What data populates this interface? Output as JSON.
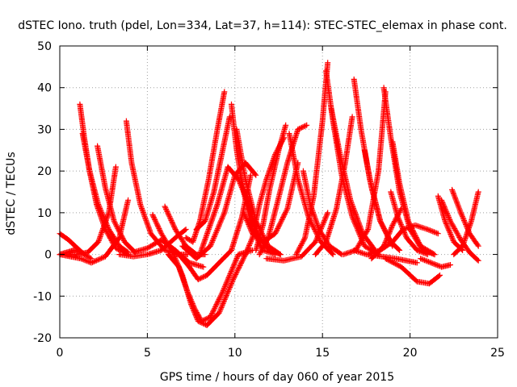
{
  "chart_data": {
    "type": "scatter",
    "title": "dSTEC Iono. truth (pdel, Lon=334, Lat=37, h=114): STEC-STEC_elemax in phase cont.",
    "xlabel": "GPS time / hours of day 060 of year 2015",
    "ylabel": "dSTEC  / TECUs",
    "xlim": [
      0,
      25
    ],
    "ylim": [
      -20,
      50
    ],
    "xticks": [
      0,
      5,
      10,
      15,
      20,
      25
    ],
    "yticks": [
      -20,
      -10,
      0,
      10,
      20,
      30,
      40,
      50
    ],
    "xtick_labels": [
      "0",
      "5",
      "10",
      "15",
      "20",
      "25"
    ],
    "ytick_labels": [
      "-20",
      "-10",
      "0",
      "10",
      "20",
      "30",
      "40",
      "50"
    ],
    "grid": true,
    "marker": "+",
    "colors": {
      "series": "#ff0000",
      "grid": "#a0a0a0",
      "axes": "#000000"
    },
    "series": [
      {
        "x": [
          0.0,
          0.5,
          1.0,
          1.4,
          1.8
        ],
        "y": [
          5,
          3.5,
          1.5,
          0,
          -1
        ]
      },
      {
        "x": [
          0.0,
          0.6,
          1.2,
          1.8,
          2.6,
          3.4,
          3.9
        ],
        "y": [
          0,
          -0.5,
          -1,
          -2,
          -0.5,
          4,
          13
        ]
      },
      {
        "x": [
          0.4,
          1.0,
          1.6,
          2.2,
          2.8,
          3.2
        ],
        "y": [
          0,
          0,
          0.5,
          3,
          10,
          21
        ]
      },
      {
        "x": [
          1.15,
          1.4,
          1.7,
          2.1,
          2.6,
          3.2,
          3.9
        ],
        "y": [
          36,
          28,
          20,
          12,
          6,
          1.5,
          0
        ]
      },
      {
        "x": [
          1.3,
          1.7,
          2.2,
          2.8,
          3.4,
          3.9
        ],
        "y": [
          29,
          20,
          12,
          6,
          2,
          0.5
        ]
      },
      {
        "x": [
          2.15,
          2.6,
          3.1,
          3.7,
          4.3
        ],
        "y": [
          26,
          16,
          8,
          3,
          0.5
        ]
      },
      {
        "x": [
          3.8,
          4.1,
          4.6,
          5.2,
          6.0,
          6.8
        ],
        "y": [
          32,
          22,
          12,
          5,
          1,
          0
        ]
      },
      {
        "x": [
          3.4,
          4.2,
          5.0,
          5.8,
          6.6,
          7.2
        ],
        "y": [
          0,
          -0.5,
          0,
          1,
          4,
          6
        ]
      },
      {
        "x": [
          5.3,
          5.8,
          6.3,
          6.8,
          7.3
        ],
        "y": [
          9.5,
          5,
          1.5,
          0,
          0
        ]
      },
      {
        "x": [
          6.0,
          6.6,
          7.2,
          7.8,
          8.3
        ],
        "y": [
          11.5,
          6,
          2,
          0,
          0
        ]
      },
      {
        "x": [
          4.2,
          5.0,
          5.8,
          6.6,
          7.4,
          8.2
        ],
        "y": [
          0.5,
          1.5,
          3.5,
          1,
          -2,
          -3
        ]
      },
      {
        "x": [
          6.2,
          6.8,
          7.3,
          7.7,
          8.1,
          8.6,
          9.3,
          10.2,
          11.0
        ],
        "y": [
          0,
          -3,
          -9,
          -13,
          -16,
          -15,
          -9,
          0,
          1
        ]
      },
      {
        "x": [
          6.4,
          7.0,
          7.5,
          7.9,
          8.4,
          9.1,
          9.9,
          10.6
        ],
        "y": [
          1,
          -5,
          -12,
          -16,
          -17,
          -14,
          -6,
          0
        ]
      },
      {
        "x": [
          6.8,
          7.4,
          7.9,
          8.4,
          9.1,
          9.8,
          10.4,
          10.9
        ],
        "y": [
          0,
          -3,
          -6,
          -5,
          -2,
          1,
          9,
          19
        ]
      },
      {
        "x": [
          7.0,
          7.8,
          8.6,
          9.4,
          10.0,
          10.6,
          11.2
        ],
        "y": [
          2,
          -1,
          2,
          10,
          19,
          22,
          19
        ]
      },
      {
        "x": [
          7.2,
          7.6,
          8.0,
          8.5,
          9.0,
          9.4
        ],
        "y": [
          4,
          3,
          8,
          18,
          30,
          39
        ]
      },
      {
        "x": [
          7.8,
          8.3,
          8.8,
          9.3,
          9.7
        ],
        "y": [
          6,
          8,
          15,
          25,
          33
        ]
      },
      {
        "x": [
          8.0,
          8.5,
          9.0,
          9.6,
          10.2,
          11.0
        ],
        "y": [
          0,
          6,
          12,
          21,
          18,
          10
        ]
      },
      {
        "x": [
          9.8,
          10.1,
          10.5,
          11.0,
          11.6,
          12.3
        ],
        "y": [
          36,
          25,
          15,
          6,
          1,
          0
        ]
      },
      {
        "x": [
          10.1,
          10.6,
          11.2,
          11.9,
          12.6
        ],
        "y": [
          30,
          18,
          8,
          2,
          0
        ]
      },
      {
        "x": [
          10.3,
          10.8,
          11.4,
          12.0,
          12.6
        ],
        "y": [
          19,
          11,
          4,
          1,
          0
        ]
      },
      {
        "x": [
          10.6,
          11.0,
          11.4,
          11.8,
          12.3,
          12.8
        ],
        "y": [
          0,
          4,
          12,
          18,
          24,
          28
        ]
      },
      {
        "x": [
          11.2,
          11.6,
          12.0,
          12.5,
          12.9
        ],
        "y": [
          1,
          7,
          16,
          25,
          31
        ]
      },
      {
        "x": [
          11.4,
          11.9,
          12.4,
          13.0,
          13.6,
          14.1
        ],
        "y": [
          0,
          4,
          12,
          22,
          30,
          31
        ]
      },
      {
        "x": [
          10.5,
          11.0,
          11.6,
          12.3,
          13.0,
          13.6
        ],
        "y": [
          10,
          5,
          3,
          5,
          11,
          22
        ]
      },
      {
        "x": [
          13.1,
          13.6,
          14.2,
          14.9,
          15.6
        ],
        "y": [
          29,
          18,
          9,
          3,
          0
        ]
      },
      {
        "x": [
          13.9,
          14.3,
          14.8,
          15.4,
          16.1
        ],
        "y": [
          20,
          12,
          6,
          2,
          0
        ]
      },
      {
        "x": [
          11.8,
          12.8,
          13.8,
          14.6,
          15.3
        ],
        "y": [
          -1,
          -1.5,
          -0.5,
          3,
          10
        ]
      },
      {
        "x": [
          13.5,
          14.0,
          14.5,
          15.0,
          15.3
        ],
        "y": [
          0,
          4,
          14,
          32,
          46
        ]
      },
      {
        "x": [
          15.2,
          15.6,
          16.1,
          16.7,
          17.4,
          18.2
        ],
        "y": [
          44,
          32,
          19,
          9,
          2,
          0
        ]
      },
      {
        "x": [
          15.5,
          16.0,
          16.6,
          17.3,
          18.0
        ],
        "y": [
          35,
          24,
          13,
          5,
          1
        ]
      },
      {
        "x": [
          16.8,
          17.2,
          17.7,
          18.3,
          19.0
        ],
        "y": [
          42,
          30,
          18,
          8,
          2
        ]
      },
      {
        "x": [
          14.6,
          15.2,
          15.8,
          16.3,
          16.7
        ],
        "y": [
          0,
          3,
          11,
          22,
          33
        ]
      },
      {
        "x": [
          16.2,
          16.9,
          17.6,
          18.2,
          18.6
        ],
        "y": [
          0,
          1,
          6,
          20,
          39
        ]
      },
      {
        "x": [
          18.5,
          18.9,
          19.4,
          20.0,
          20.7,
          21.4
        ],
        "y": [
          40,
          28,
          15,
          6,
          1,
          0
        ]
      },
      {
        "x": [
          19.0,
          19.4,
          19.9,
          20.6,
          21.4
        ],
        "y": [
          27,
          17,
          8,
          2,
          0
        ]
      },
      {
        "x": [
          17.6,
          18.3,
          19.0,
          19.6,
          20.3,
          21.0,
          21.6
        ],
        "y": [
          0,
          1,
          3,
          6,
          7,
          6,
          5
        ]
      },
      {
        "x": [
          16.8,
          17.5,
          18.4,
          19.2,
          19.8,
          20.4
        ],
        "y": [
          1,
          0,
          -0.5,
          -1,
          -1.5,
          -2
        ]
      },
      {
        "x": [
          18.6,
          19.5,
          20.4,
          21.1,
          21.7
        ],
        "y": [
          -1,
          -3,
          -6.5,
          -7,
          -5
        ]
      },
      {
        "x": [
          17.8,
          18.5,
          19.0,
          19.5
        ],
        "y": [
          -1,
          2,
          7,
          11
        ]
      },
      {
        "x": [
          17.4,
          17.8,
          18.3,
          18.9,
          19.4
        ],
        "y": [
          25,
          16,
          8,
          3,
          1
        ]
      },
      {
        "x": [
          18.9,
          19.3,
          19.8,
          20.4,
          21.0
        ],
        "y": [
          15,
          9,
          4,
          1,
          0
        ]
      },
      {
        "x": [
          21.6,
          22.0,
          22.5,
          23.0
        ],
        "y": [
          14,
          8,
          3,
          1
        ]
      },
      {
        "x": [
          21.8,
          22.3,
          22.9,
          23.4,
          23.9
        ],
        "y": [
          13,
          8,
          3.5,
          0.5,
          -1.5
        ]
      },
      {
        "x": [
          22.4,
          22.9,
          23.4,
          23.9
        ],
        "y": [
          15.5,
          10,
          5,
          2
        ]
      },
      {
        "x": [
          20.6,
          21.2,
          21.8,
          22.3
        ],
        "y": [
          -1,
          -2,
          -3,
          -2.5
        ]
      },
      {
        "x": [
          22.5,
          23.0,
          23.5,
          23.9
        ],
        "y": [
          0,
          2,
          8,
          15
        ]
      },
      {
        "x": [
          0.0,
          0.4,
          0.8,
          1.2
        ],
        "y": [
          0,
          0.5,
          1,
          0.5
        ]
      }
    ]
  }
}
